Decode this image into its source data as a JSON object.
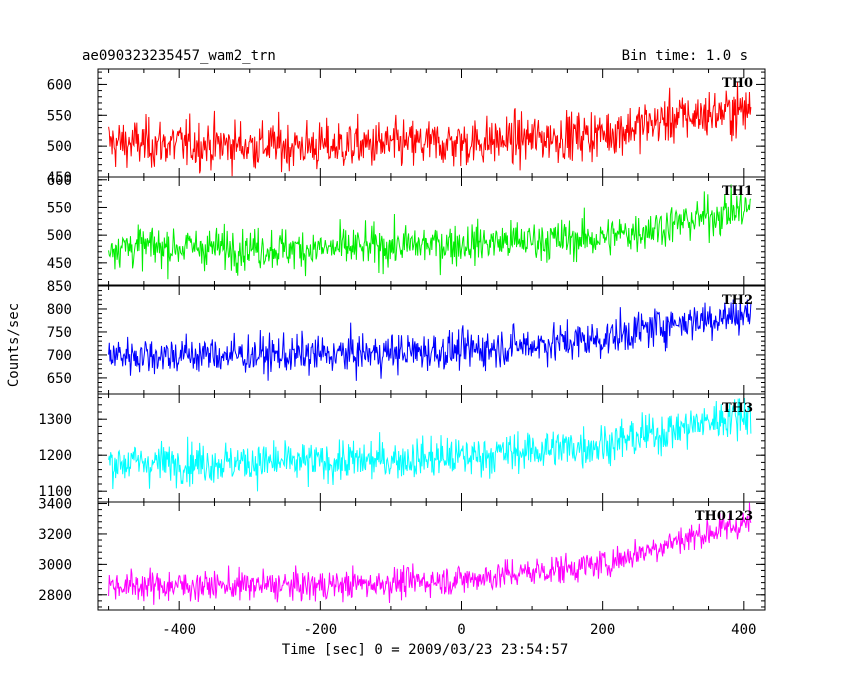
{
  "header": {
    "title": "ae090323235457_wam2_trn",
    "bin_time": "Bin time: 1.0 s"
  },
  "chart_data": {
    "type": "line",
    "title": "ae090323235457_wam2_trn",
    "xlabel": "Time [sec] 0 = 2009/03/23 23:54:57",
    "ylabel": "Counts/sec",
    "xlim": [
      -515,
      430
    ],
    "x_ticks": [
      "-400",
      "-200",
      "0",
      "200",
      "400"
    ],
    "x_tick_values": [
      -400,
      -200,
      0,
      200,
      400
    ],
    "x_range": [
      -500,
      410
    ],
    "grid": false,
    "panels": [
      {
        "name": "TH0",
        "color": "#ff0000",
        "ylim": [
          450,
          625
        ],
        "y_ticks": [
          "450",
          "500",
          "550",
          "600"
        ],
        "y_tick_values": [
          450,
          500,
          550,
          600
        ],
        "trend": {
          "x": [
            -500,
            -200,
            0,
            200,
            300,
            410
          ],
          "y": [
            505,
            500,
            505,
            520,
            545,
            560
          ]
        },
        "noise": 28
      },
      {
        "name": "TH1",
        "color": "#00ee00",
        "ylim": [
          410,
          605
        ],
        "y_ticks": [
          "450",
          "500",
          "550",
          "600"
        ],
        "y_tick_values": [
          450,
          500,
          550,
          600
        ],
        "trend": {
          "x": [
            -500,
            -200,
            0,
            200,
            300,
            410
          ],
          "y": [
            480,
            475,
            485,
            495,
            520,
            550
          ]
        },
        "noise": 26
      },
      {
        "name": "TH2",
        "color": "#0000ff",
        "ylim": [
          615,
          850
        ],
        "y_ticks": [
          "650",
          "700",
          "750",
          "800",
          "850"
        ],
        "y_tick_values": [
          650,
          700,
          750,
          800,
          850
        ],
        "trend": {
          "x": [
            -500,
            -200,
            0,
            200,
            300,
            410
          ],
          "y": [
            700,
            700,
            710,
            735,
            770,
            790
          ]
        },
        "noise": 30
      },
      {
        "name": "TH3",
        "color": "#00ffff",
        "ylim": [
          1070,
          1370
        ],
        "y_ticks": [
          "1100",
          "1200",
          "1300"
        ],
        "y_tick_values": [
          1100,
          1200,
          1300
        ],
        "trend": {
          "x": [
            -500,
            -200,
            0,
            200,
            300,
            410
          ],
          "y": [
            1180,
            1180,
            1195,
            1230,
            1270,
            1320
          ]
        },
        "noise": 40
      },
      {
        "name": "TH0123",
        "color": "#ff00ff",
        "ylim": [
          2700,
          3410
        ],
        "y_ticks": [
          "2800",
          "3000",
          "3200",
          "3400"
        ],
        "y_tick_values": [
          2800,
          3000,
          3200,
          3400
        ],
        "trend": {
          "x": [
            -500,
            -200,
            0,
            200,
            300,
            410
          ],
          "y": [
            2860,
            2860,
            2900,
            3000,
            3150,
            3280
          ]
        },
        "noise": 70
      }
    ]
  }
}
